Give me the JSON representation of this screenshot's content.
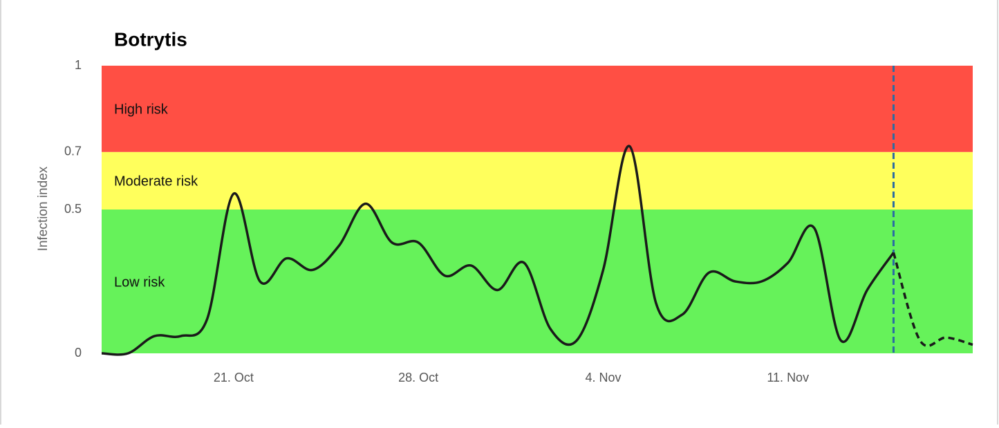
{
  "chart_data": {
    "type": "line",
    "title": "Botrytis",
    "y_label": "Infection index",
    "categories": [
      null,
      null,
      null,
      null,
      null,
      "21. Oct",
      null,
      null,
      null,
      null,
      null,
      null,
      "28. Oct",
      null,
      null,
      null,
      null,
      null,
      null,
      "4. Nov",
      null,
      null,
      null,
      null,
      null,
      null,
      "11. Nov",
      null,
      null,
      null,
      null,
      null,
      null,
      null
    ],
    "series": [
      {
        "color": "#1a1a1a",
        "dashed": false,
        "values": [
          0,
          0,
          0.06,
          0.06,
          0.12,
          0.555,
          0.25,
          0.33,
          0.29,
          0.375,
          0.52,
          0.385,
          0.385,
          0.27,
          0.305,
          0.22,
          0.315,
          0.085,
          0.045,
          0.29,
          0.72,
          0.175,
          0.135,
          0.28,
          0.25,
          0.25,
          0.315,
          0.435,
          0.045,
          0.22,
          0.35,
          null,
          null,
          null
        ]
      },
      {
        "color": "#1a1a1a",
        "dashed": true,
        "values": [
          null,
          null,
          null,
          null,
          null,
          null,
          null,
          null,
          null,
          null,
          null,
          null,
          null,
          null,
          null,
          null,
          null,
          null,
          null,
          null,
          null,
          null,
          null,
          null,
          null,
          null,
          null,
          null,
          null,
          null,
          0.35,
          0.045,
          0.055,
          0.03
        ]
      }
    ],
    "now_line_color": "#2b6ca3",
    "bands": [
      {
        "from": 0,
        "to": 0.5,
        "label": "Low risk",
        "color": "#66f25a"
      },
      {
        "from": 0.5,
        "to": 0.7,
        "label": "Moderate risk",
        "color": "#ffff5c"
      },
      {
        "from": 0.7,
        "to": 1,
        "label": "High risk",
        "color": "#ff4f44"
      }
    ],
    "ylim": [
      0,
      1
    ],
    "yticks": [
      0,
      0.5,
      0.7,
      1
    ]
  }
}
